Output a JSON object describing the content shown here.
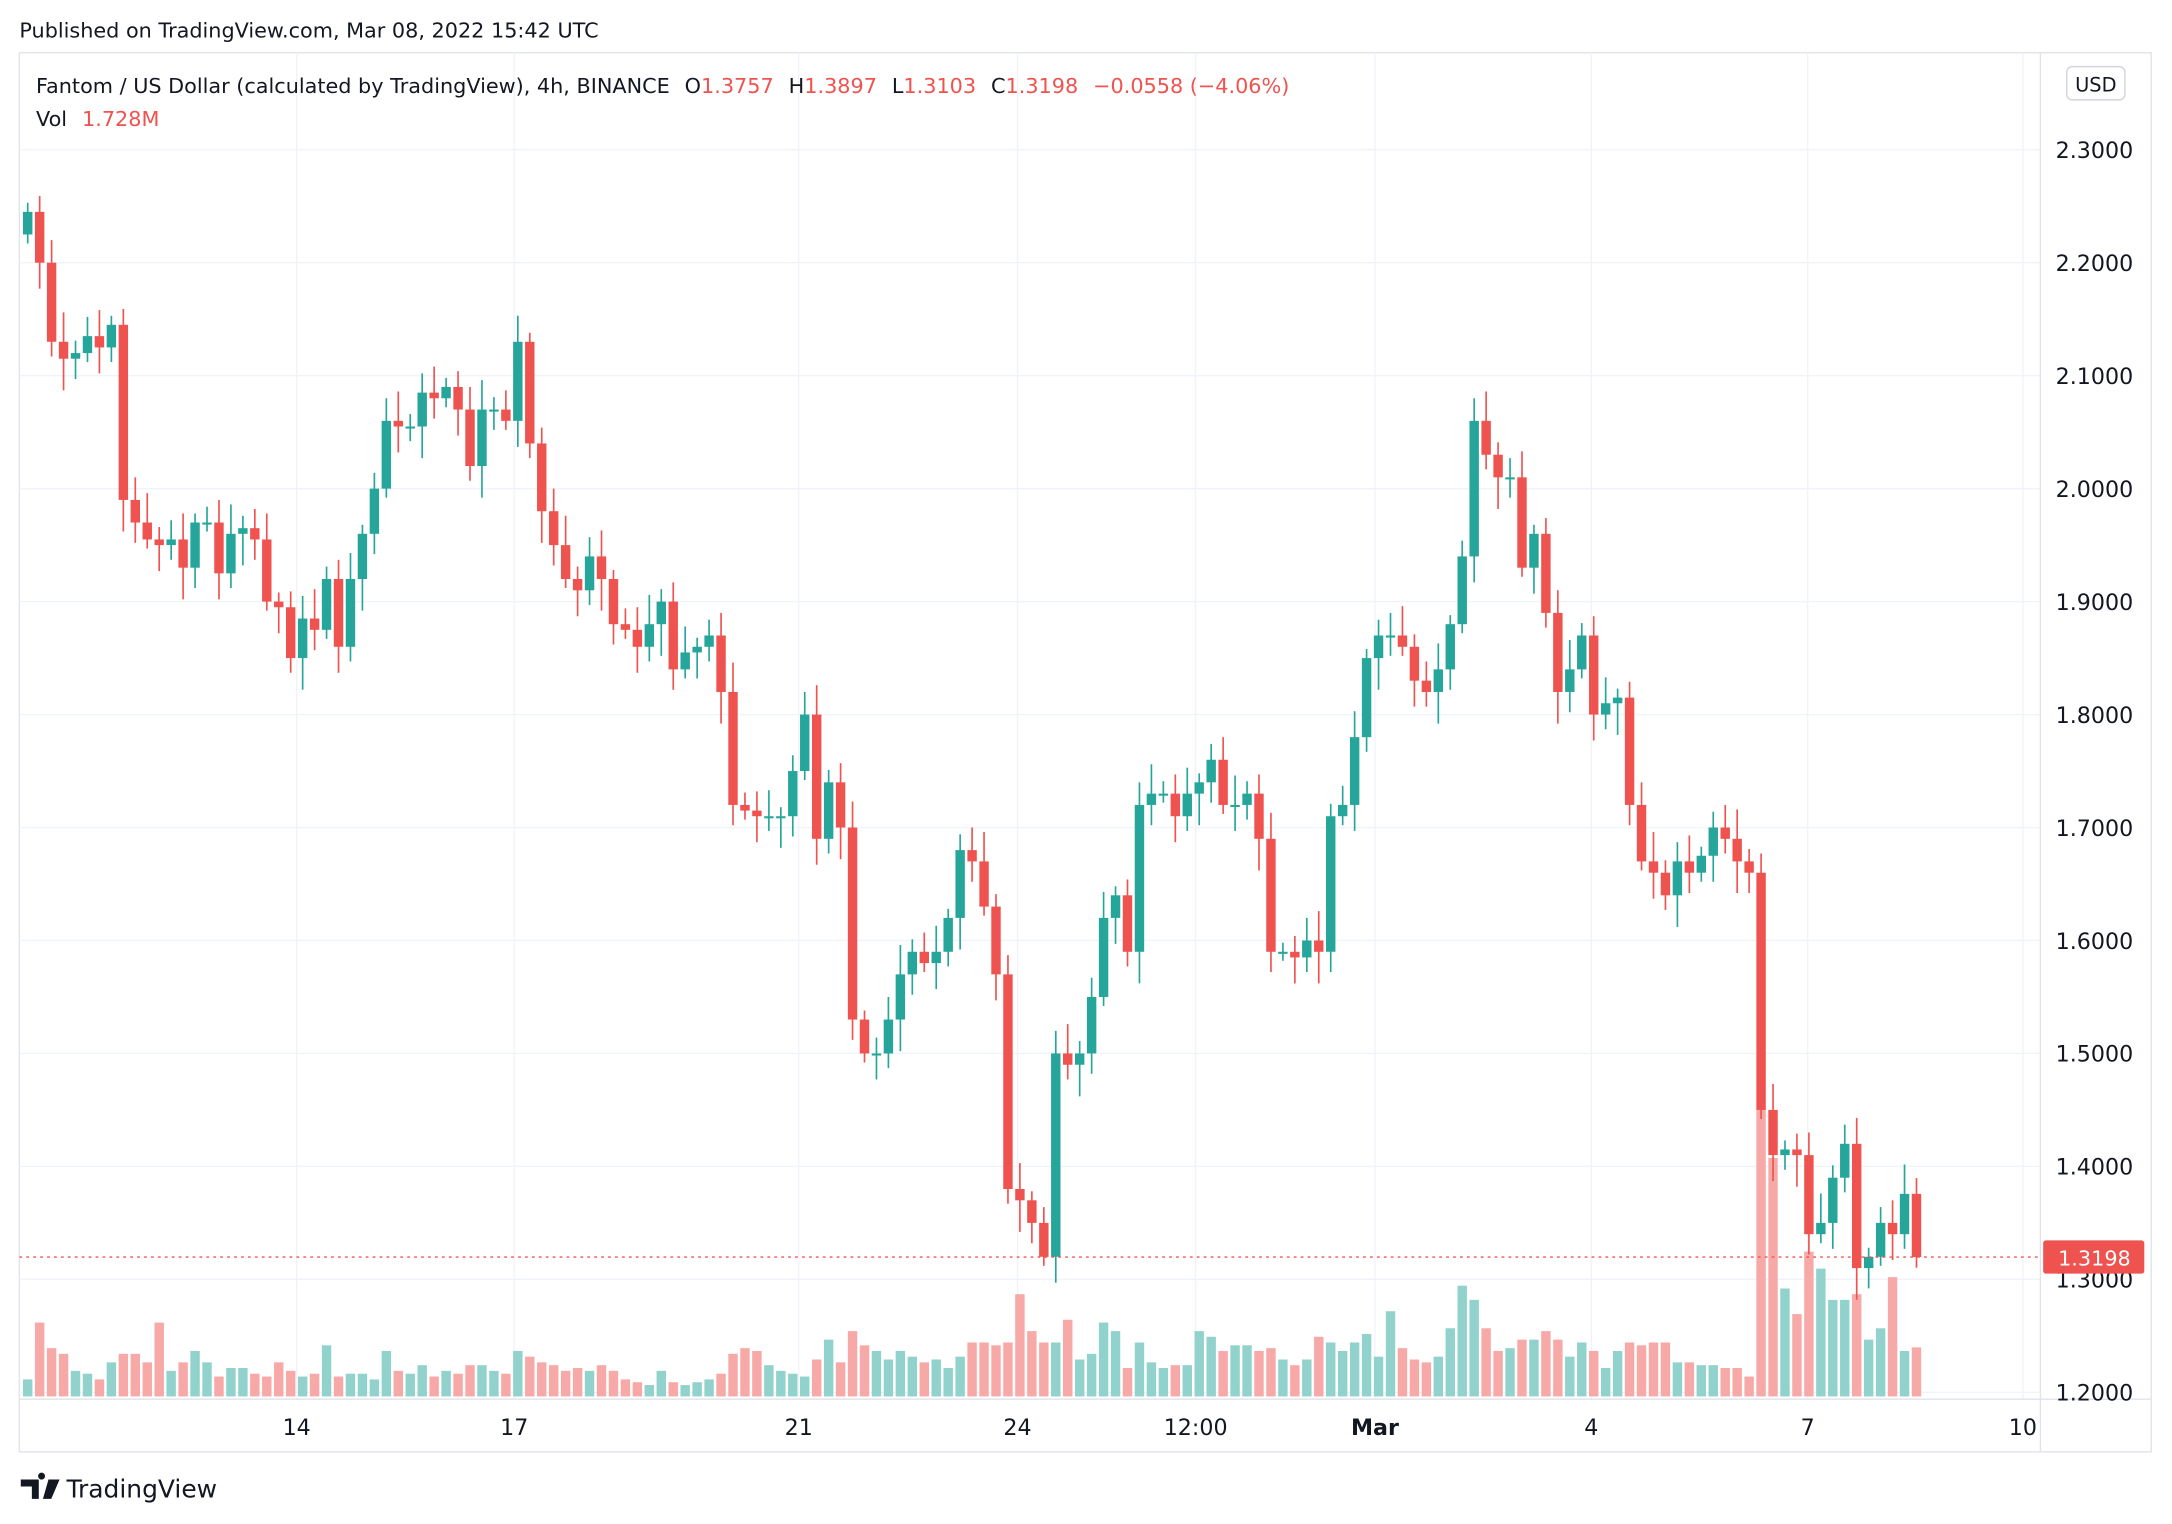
{
  "published": "Published on TradingView.com, Mar 08, 2022 15:42 UTC",
  "legend": {
    "symbol": "Fantom / US Dollar (calculated by TradingView), 4h, BINANCE",
    "o_label": "O",
    "o": "1.3757",
    "h_label": "H",
    "h": "1.3897",
    "l_label": "L",
    "l": "1.3103",
    "c_label": "C",
    "c": "1.3198",
    "change": "−0.0558 (−4.06%)",
    "vol_label": "Vol",
    "vol": "1.728M"
  },
  "currency": "USD",
  "brand": "TradingView",
  "colors": {
    "up": "#26a69a",
    "down": "#ef5350",
    "up_vol": "#92d2cc",
    "down_vol": "#f7a9a7",
    "grid": "#f0f3fa",
    "text": "#131722"
  },
  "chart_data": {
    "type": "candlestick",
    "interval": "4h",
    "first_open": 2.225,
    "last_candle": {
      "open": 1.3757,
      "high": 1.3897,
      "low": 1.3103,
      "close": 1.3198
    },
    "closes": [
      2.245,
      2.2,
      2.13,
      2.115,
      2.12,
      2.135,
      2.125,
      2.145,
      1.99,
      1.97,
      1.955,
      1.95,
      1.955,
      1.93,
      1.97,
      1.97,
      1.925,
      1.96,
      1.965,
      1.955,
      1.9,
      1.895,
      1.85,
      1.885,
      1.875,
      1.92,
      1.86,
      1.92,
      1.96,
      2.0,
      2.06,
      2.055,
      2.055,
      2.085,
      2.08,
      2.09,
      2.07,
      2.02,
      2.07,
      2.07,
      2.06,
      2.13,
      2.04,
      1.98,
      1.95,
      1.92,
      1.91,
      1.94,
      1.92,
      1.88,
      1.875,
      1.86,
      1.88,
      1.9,
      1.84,
      1.855,
      1.86,
      1.87,
      1.82,
      1.72,
      1.715,
      1.71,
      1.71,
      1.71,
      1.75,
      1.8,
      1.69,
      1.74,
      1.7,
      1.53,
      1.5,
      1.5,
      1.53,
      1.57,
      1.59,
      1.58,
      1.59,
      1.62,
      1.68,
      1.67,
      1.63,
      1.57,
      1.38,
      1.37,
      1.35,
      1.32,
      1.5,
      1.49,
      1.5,
      1.55,
      1.62,
      1.64,
      1.59,
      1.72,
      1.73,
      1.73,
      1.71,
      1.73,
      1.74,
      1.76,
      1.72,
      1.72,
      1.73,
      1.69,
      1.59,
      1.59,
      1.585,
      1.6,
      1.59,
      1.71,
      1.72,
      1.78,
      1.85,
      1.87,
      1.87,
      1.86,
      1.83,
      1.82,
      1.84,
      1.88,
      1.94,
      2.06,
      2.03,
      2.01,
      2.01,
      1.93,
      1.96,
      1.89,
      1.82,
      1.84,
      1.87,
      1.8,
      1.81,
      1.815,
      1.72,
      1.67,
      1.66,
      1.64,
      1.67,
      1.66,
      1.675,
      1.7,
      1.69,
      1.67,
      1.66,
      1.45,
      1.41,
      1.415,
      1.41,
      1.34,
      1.35,
      1.39,
      1.42,
      1.31,
      1.32,
      1.35,
      1.34,
      1.3757,
      1.3198
    ],
    "volumes_m": [
      0.6,
      2.6,
      1.7,
      1.5,
      0.9,
      0.8,
      0.6,
      1.2,
      1.5,
      1.5,
      1.2,
      2.6,
      0.9,
      1.2,
      1.6,
      1.2,
      0.7,
      1.0,
      1.0,
      0.8,
      0.7,
      1.2,
      0.9,
      0.7,
      0.8,
      1.8,
      0.7,
      0.8,
      0.8,
      0.6,
      1.6,
      0.9,
      0.8,
      1.1,
      0.7,
      0.9,
      0.8,
      1.1,
      1.1,
      0.9,
      0.8,
      1.6,
      1.4,
      1.2,
      1.1,
      0.9,
      1.0,
      0.9,
      1.1,
      0.9,
      0.6,
      0.5,
      0.4,
      0.9,
      0.5,
      0.4,
      0.5,
      0.6,
      0.8,
      1.5,
      1.7,
      1.6,
      1.1,
      0.9,
      0.8,
      0.7,
      1.3,
      2.0,
      1.2,
      2.3,
      1.8,
      1.6,
      1.3,
      1.6,
      1.4,
      1.2,
      1.3,
      1.0,
      1.4,
      1.9,
      1.9,
      1.8,
      1.9,
      3.6,
      2.3,
      1.9,
      1.9,
      2.7,
      1.3,
      1.5,
      2.6,
      2.3,
      1.0,
      1.9,
      1.2,
      1.0,
      1.1,
      1.1,
      2.3,
      2.1,
      1.6,
      1.8,
      1.8,
      1.6,
      1.7,
      1.3,
      1.1,
      1.3,
      2.1,
      1.9,
      1.6,
      1.9,
      2.2,
      1.4,
      3.0,
      1.7,
      1.3,
      1.2,
      1.4,
      2.4,
      3.9,
      3.4,
      2.4,
      1.6,
      1.7,
      2.0,
      2.0,
      2.3,
      2.0,
      1.4,
      1.9,
      1.6,
      1.0,
      1.6,
      1.9,
      1.8,
      1.9,
      1.9,
      1.2,
      1.2,
      1.1,
      1.1,
      1.0,
      1.0,
      0.7,
      10.1,
      8.4,
      3.8,
      2.9,
      5.1,
      4.5,
      3.4,
      3.4,
      3.6,
      2.0,
      2.4,
      4.2,
      1.6,
      1.728
    ],
    "price_ticks": [
      "2.3000",
      "2.2000",
      "2.1000",
      "2.0000",
      "1.9000",
      "1.8000",
      "1.7000",
      "1.6000",
      "1.5000",
      "1.4000",
      "1.3000",
      "1.2000"
    ],
    "ylim": [
      1.2,
      2.3
    ],
    "time_ticks": [
      {
        "label": "14",
        "candle": 22.5
      },
      {
        "label": "17",
        "candle": 40.7
      },
      {
        "label": "21",
        "candle": 64.5
      },
      {
        "label": "24",
        "candle": 82.8
      },
      {
        "label": "12:00",
        "candle": 97.7
      },
      {
        "label": "Mar",
        "candle": 112.7
      },
      {
        "label": "4",
        "candle": 130.8
      },
      {
        "label": "7",
        "candle": 148.9
      },
      {
        "label": "10",
        "candle": 166.9
      }
    ],
    "last_price_label": "1.3198",
    "grid": true
  }
}
